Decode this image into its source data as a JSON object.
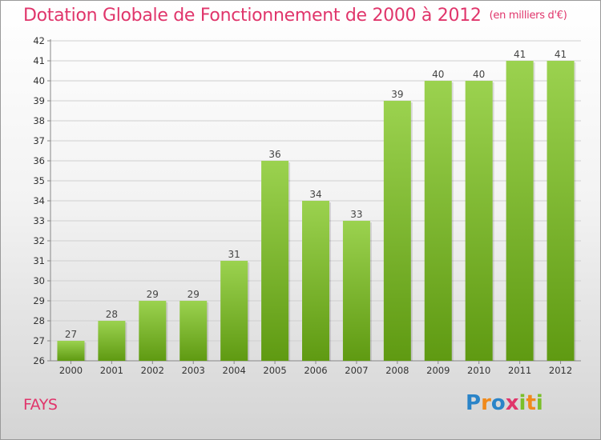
{
  "title": "Dotation Globale de Fonctionnement de 2000 à 2012",
  "unit_note": "(en milliers d'€)",
  "place": "FAYS",
  "logo": {
    "letters": [
      "P",
      "r",
      "o",
      "x",
      "i",
      "t",
      "i"
    ],
    "colors": [
      "#2a84c8",
      "#f08a1c",
      "#2a84c8",
      "#e0356b",
      "#7bbf2a",
      "#f08a1c",
      "#7bbf2a"
    ]
  },
  "colors": {
    "title": "#e0356b",
    "bar_light": "#9bd24f",
    "bar_dark": "#5f9a12",
    "grid": "#cfcfcf"
  },
  "chart_data": {
    "type": "bar",
    "categories": [
      "2000",
      "2001",
      "2002",
      "2003",
      "2004",
      "2005",
      "2006",
      "2007",
      "2008",
      "2009",
      "2010",
      "2011",
      "2012"
    ],
    "values": [
      27,
      28,
      29,
      29,
      31,
      36,
      34,
      33,
      39,
      40,
      40,
      41,
      41
    ],
    "ylim": [
      26,
      42
    ],
    "yticks": [
      26,
      27,
      28,
      29,
      30,
      31,
      32,
      33,
      34,
      35,
      36,
      37,
      38,
      39,
      40,
      41,
      42
    ],
    "grid": true
  }
}
